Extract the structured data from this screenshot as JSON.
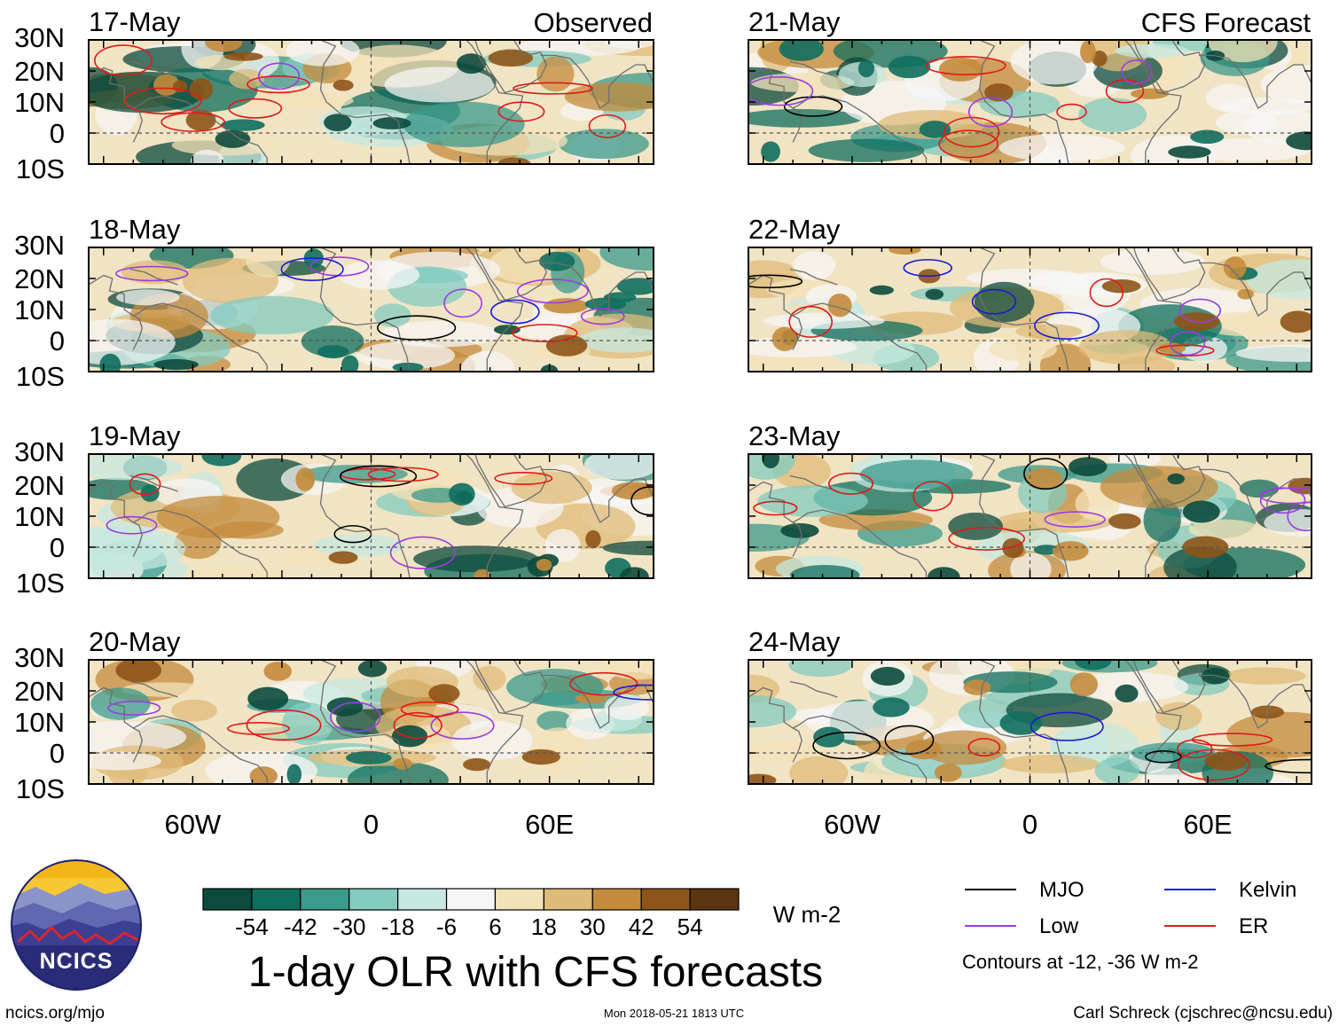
{
  "chart_data": {
    "type": "heatmap",
    "title": "1-day OLR with CFS forecasts",
    "column_titles": {
      "left": "Observed",
      "right": "CFS Forecast"
    },
    "panels": [
      {
        "date": "17-May",
        "column": "observed"
      },
      {
        "date": "18-May",
        "column": "observed"
      },
      {
        "date": "19-May",
        "column": "observed"
      },
      {
        "date": "20-May",
        "column": "observed"
      },
      {
        "date": "21-May",
        "column": "forecast"
      },
      {
        "date": "22-May",
        "column": "forecast"
      },
      {
        "date": "23-May",
        "column": "forecast"
      },
      {
        "date": "24-May",
        "column": "forecast"
      }
    ],
    "lon_range": [
      -95,
      95
    ],
    "lat_range": [
      -10,
      30
    ],
    "y_ticks": [
      {
        "value": 30,
        "label": "30N"
      },
      {
        "value": 20,
        "label": "20N"
      },
      {
        "value": 10,
        "label": "10N"
      },
      {
        "value": 0,
        "label": "0"
      },
      {
        "value": -10,
        "label": "10S"
      }
    ],
    "x_ticks": [
      {
        "value": -60,
        "label": "60W"
      },
      {
        "value": 0,
        "label": "0"
      },
      {
        "value": 60,
        "label": "60E"
      }
    ],
    "colorbar": {
      "labels": [
        "-54",
        "-42",
        "-30",
        "-18",
        "-6",
        "6",
        "18",
        "30",
        "42",
        "54"
      ],
      "colors": [
        "#0c4a3c",
        "#0f6e5e",
        "#3a9a8b",
        "#82cbbf",
        "#c6e8e0",
        "#f6f6f6",
        "#f3e1b8",
        "#dfbb78",
        "#c48b3c",
        "#8e5418",
        "#5a3510"
      ],
      "units": "W m-2"
    },
    "legend": [
      {
        "label": "MJO",
        "color": "#000000"
      },
      {
        "label": "Kelvin",
        "color": "#1a1ad6"
      },
      {
        "label": "Low",
        "color": "#9b3de0"
      },
      {
        "label": "ER",
        "color": "#e01a1a"
      }
    ],
    "contour_note": "Contours at -12, -36 W m-2"
  },
  "footer": {
    "site": "ncics.org/mjo",
    "timestamp": "Mon 2018-05-21 1813 UTC",
    "author": "Carl Schreck (cjschrec@ncsu.edu)",
    "logo_text": "NCICS"
  }
}
